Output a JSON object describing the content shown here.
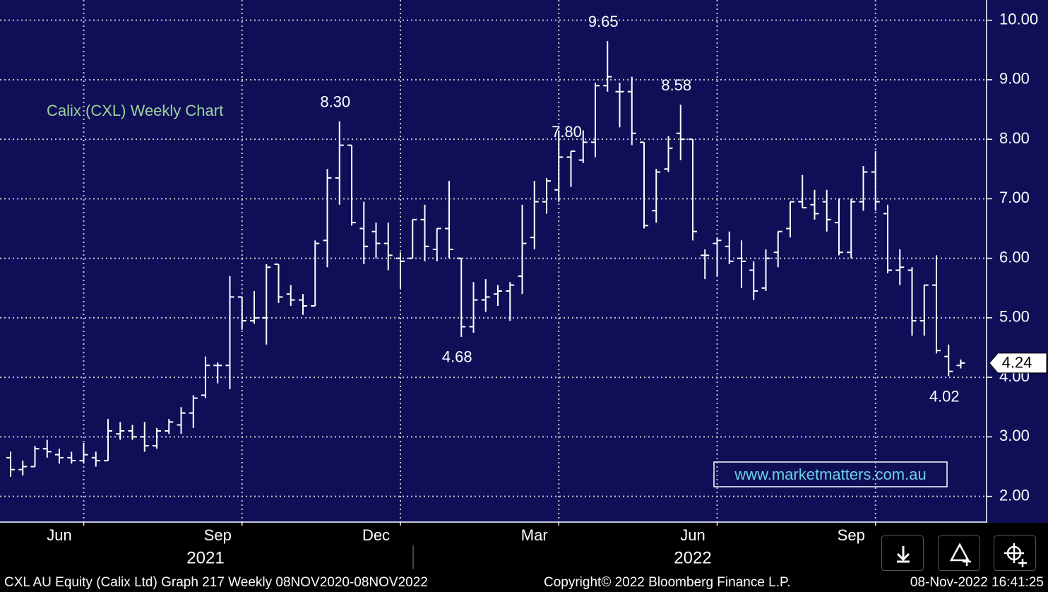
{
  "chart_data": {
    "type": "ohlc",
    "title": "Calix (CXL) Weekly Chart",
    "watermark": "www.marketmatters.com.au",
    "footer": {
      "left": "CXL AU Equity (Calix Ltd) Graph 217  Weekly 08NOV2020-08NOV2022",
      "center": "Copyright© 2022 Bloomberg Finance L.P.",
      "right": "08-Nov-2022 16:41:25"
    },
    "categories": [
      null,
      null,
      null,
      null,
      "Jun",
      null,
      null,
      null,
      null,
      null,
      null,
      null,
      null,
      null,
      null,
      null,
      null,
      "Sep",
      null,
      null,
      null,
      null,
      null,
      null,
      null,
      null,
      null,
      null,
      null,
      null,
      "Dec",
      null,
      null,
      null,
      null,
      null,
      null,
      null,
      null,
      null,
      null,
      null,
      null,
      "Mar",
      null,
      null,
      null,
      null,
      null,
      null,
      null,
      null,
      null,
      null,
      null,
      null,
      "Jun",
      null,
      null,
      null,
      null,
      null,
      null,
      null,
      null,
      null,
      null,
      null,
      null,
      "Sep",
      null,
      null,
      null,
      null,
      null,
      null,
      null,
      null,
      null
    ],
    "categories2": [
      null,
      null,
      null,
      null,
      null,
      null,
      null,
      null,
      null,
      null,
      null,
      null,
      null,
      null,
      null,
      null,
      "2021",
      null,
      null,
      null,
      null,
      null,
      null,
      null,
      null,
      null,
      null,
      null,
      null,
      null,
      null,
      null,
      null,
      null,
      null,
      null,
      null,
      null,
      null,
      null,
      null,
      null,
      null,
      null,
      null,
      null,
      null,
      null,
      null,
      null,
      null,
      null,
      null,
      null,
      null,
      null,
      "2022",
      null,
      null,
      null,
      null,
      null,
      null,
      null,
      null,
      null,
      null,
      null,
      null,
      null,
      null,
      null,
      null,
      null,
      null,
      null,
      null,
      null,
      null
    ],
    "open": [
      2.65,
      2.45,
      2.5,
      2.8,
      2.7,
      2.65,
      2.6,
      2.65,
      2.6,
      3.05,
      3.1,
      3.0,
      2.85,
      3.1,
      3.2,
      3.4,
      3.7,
      4.2,
      4.2,
      5.35,
      4.95,
      5.0,
      5.9,
      5.4,
      5.3,
      5.2,
      6.3,
      7.35,
      7.9,
      6.5,
      6.45,
      6.25,
      6.0,
      6.0,
      6.65,
      6.15,
      6.5,
      6.0,
      4.85,
      5.3,
      5.4,
      5.45,
      5.7,
      6.35,
      6.95,
      7.15,
      7.7,
      7.65,
      7.95,
      8.9,
      8.8,
      8.8,
      7.95,
      6.8,
      7.5,
      8.1,
      8.0,
      6.05,
      6.25,
      6.2,
      6.0,
      5.8,
      5.5,
      6.1,
      6.5,
      6.95,
      6.9,
      6.95,
      6.6,
      6.1,
      6.95,
      7.45,
      6.75,
      5.8,
      5.8,
      4.95,
      5.55,
      4.35,
      4.2
    ],
    "high": [
      2.75,
      2.6,
      2.85,
      2.95,
      2.8,
      2.75,
      2.9,
      2.75,
      3.3,
      3.25,
      3.2,
      3.25,
      3.15,
      3.3,
      3.5,
      3.7,
      4.35,
      4.25,
      5.7,
      5.35,
      5.45,
      5.9,
      5.9,
      5.55,
      5.4,
      6.3,
      7.5,
      8.3,
      7.9,
      6.95,
      6.6,
      6.6,
      6.1,
      6.65,
      6.9,
      6.5,
      7.3,
      6.0,
      5.6,
      5.65,
      5.55,
      5.6,
      6.9,
      7.3,
      7.35,
      8.15,
      7.8,
      8.15,
      8.95,
      9.65,
      8.95,
      9.05,
      7.95,
      7.5,
      8.05,
      8.58,
      8.0,
      6.15,
      6.35,
      6.45,
      6.3,
      5.95,
      6.15,
      6.45,
      6.95,
      7.4,
      7.15,
      7.15,
      7.0,
      7.0,
      7.55,
      7.8,
      6.9,
      6.15,
      5.85,
      5.55,
      6.05,
      4.55,
      4.3
    ],
    "low": [
      2.33,
      2.35,
      2.5,
      2.65,
      2.55,
      2.55,
      2.55,
      2.5,
      2.6,
      2.95,
      2.95,
      2.75,
      2.8,
      3.05,
      3.05,
      3.15,
      3.65,
      3.9,
      3.8,
      4.8,
      4.9,
      4.55,
      5.25,
      5.2,
      5.05,
      5.2,
      5.85,
      6.9,
      6.55,
      5.9,
      6.0,
      5.8,
      5.5,
      6.0,
      5.95,
      5.95,
      6.0,
      4.68,
      4.75,
      5.1,
      5.2,
      4.95,
      5.4,
      6.15,
      6.75,
      6.95,
      7.2,
      7.6,
      7.7,
      8.8,
      8.2,
      7.9,
      6.5,
      6.6,
      7.45,
      7.65,
      6.3,
      5.65,
      5.7,
      5.9,
      5.5,
      5.3,
      5.45,
      5.85,
      6.35,
      6.85,
      6.65,
      6.45,
      6.05,
      6.0,
      6.8,
      6.8,
      5.75,
      5.55,
      4.7,
      4.7,
      4.4,
      4.02,
      4.15
    ],
    "close": [
      2.45,
      2.5,
      2.8,
      2.75,
      2.65,
      2.6,
      2.7,
      2.6,
      3.1,
      3.1,
      3.0,
      2.85,
      3.1,
      3.25,
      3.4,
      3.65,
      4.2,
      4.2,
      5.35,
      4.95,
      5.0,
      5.85,
      5.35,
      5.3,
      5.2,
      6.25,
      7.35,
      7.9,
      6.6,
      6.2,
      6.25,
      6.05,
      5.95,
      6.65,
      6.2,
      6.5,
      6.15,
      4.85,
      5.3,
      5.35,
      5.45,
      5.55,
      6.25,
      6.95,
      7.3,
      7.7,
      7.8,
      7.95,
      8.9,
      9.05,
      8.8,
      8.1,
      6.55,
      7.45,
      7.85,
      8.0,
      6.45,
      6.05,
      6.3,
      5.95,
      5.95,
      5.45,
      6.0,
      6.45,
      6.95,
      6.85,
      6.75,
      6.65,
      6.1,
      6.95,
      7.45,
      6.95,
      5.8,
      5.85,
      4.95,
      5.55,
      4.45,
      4.1,
      4.24
    ],
    "color": "#ffffff",
    "annotations": [
      {
        "text": "8.30",
        "value": 8.3,
        "at": "high"
      },
      {
        "text": "4.68",
        "value": 4.68,
        "at": "low"
      },
      {
        "text": "9.65",
        "value": 9.65,
        "at": "high"
      },
      {
        "text": "8.58",
        "value": 8.58,
        "at": "high"
      },
      {
        "text": "7.80",
        "value": 7.8,
        "at": "high"
      },
      {
        "text": "4.02",
        "value": 4.02,
        "at": "low"
      }
    ],
    "last_price": {
      "value": 4.24,
      "label": "4.24"
    },
    "ylim": [
      1.58,
      10.34
    ],
    "yticks": [
      {
        "value": 2,
        "label": "2.00"
      },
      {
        "value": 3,
        "label": "3.00"
      },
      {
        "value": 4,
        "label": "4.00"
      },
      {
        "value": 5,
        "label": "5.00"
      },
      {
        "value": 6,
        "label": "6.00"
      },
      {
        "value": 7,
        "label": "7.00"
      },
      {
        "value": 8,
        "label": "8.00"
      },
      {
        "value": 9,
        "label": "9.00"
      },
      {
        "value": 10,
        "label": "10.00"
      }
    ],
    "grid": true
  }
}
